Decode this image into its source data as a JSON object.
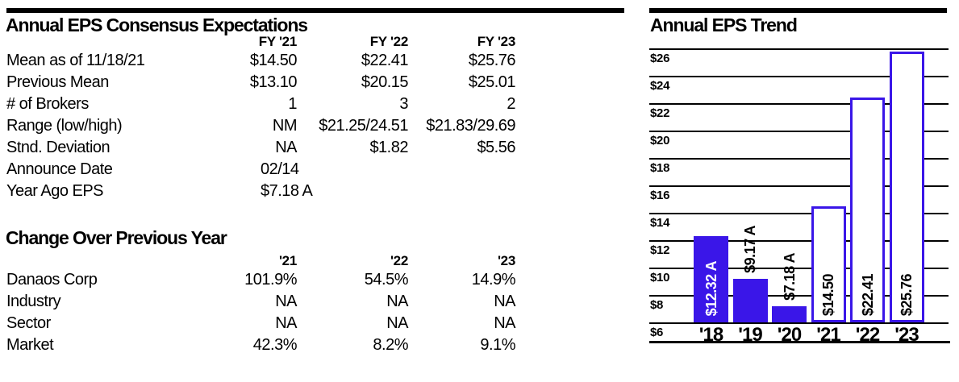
{
  "page": {
    "left_section": {
      "title": "Annual EPS Consensus Expectations",
      "consensus_table": {
        "columns": [
          "FY '21",
          "FY '22",
          "FY '23"
        ],
        "rows": [
          {
            "label": "Mean as of 11/18/21",
            "values": [
              "$14.50",
              "$22.41",
              "$25.76"
            ],
            "value_align": "right"
          },
          {
            "label": "Previous Mean",
            "values": [
              "$13.10",
              "$20.15",
              "$25.01"
            ],
            "value_align": "right"
          },
          {
            "label": "# of Brokers",
            "values": [
              "1",
              "3",
              "2"
            ],
            "value_align": "right"
          },
          {
            "label": "Range (low/high)",
            "values": [
              "NM",
              "$21.25/24.51",
              "$21.83/29.69"
            ],
            "value_align": "right"
          },
          {
            "label": "Stnd. Deviation",
            "values": [
              "NA",
              "$1.82",
              "$5.56"
            ],
            "value_align": "right"
          },
          {
            "label": "Announce Date",
            "values": [
              "02/14",
              "",
              ""
            ],
            "value_align": "left"
          },
          {
            "label": "Year Ago EPS",
            "values": [
              "$7.18 A",
              "",
              ""
            ],
            "value_align": "left"
          }
        ]
      },
      "change_section_title": "Change Over Previous Year",
      "change_table": {
        "columns": [
          "'21",
          "'22",
          "'23"
        ],
        "rows": [
          {
            "label": "Danaos Corp",
            "values": [
              "101.9%",
              "54.5%",
              "14.9%"
            ],
            "value_align": "right"
          },
          {
            "label": "Industry",
            "values": [
              "NA",
              "NA",
              "NA"
            ],
            "value_align": "right"
          },
          {
            "label": "Sector",
            "values": [
              "NA",
              "NA",
              "NA"
            ],
            "value_align": "right"
          },
          {
            "label": "Market",
            "values": [
              "42.3%",
              "8.2%",
              "9.1%"
            ],
            "value_align": "right"
          }
        ]
      }
    },
    "right_section": {
      "title": "Annual EPS Trend"
    }
  },
  "colors": {
    "accent_blue": "#3a16e8",
    "grid_black": "#000000",
    "estimate_bar_fill": "#ffffff",
    "actual_label_text": "#ffffff",
    "estimate_label_text": "#000000"
  },
  "chart_data": {
    "type": "bar",
    "title": "Annual EPS Trend",
    "categories": [
      "'18",
      "'19",
      "'20",
      "'21",
      "'22",
      "'23"
    ],
    "values": [
      12.32,
      9.17,
      7.18,
      14.5,
      22.41,
      25.76
    ],
    "bar_labels": [
      "$12.32 A",
      "$9.17 A",
      "$7.18 A",
      "$14.50",
      "$22.41",
      "$25.76"
    ],
    "bar_styles": [
      "actual",
      "actual",
      "actual",
      "estimate",
      "estimate",
      "estimate"
    ],
    "label_placement": [
      "inside",
      "above",
      "above",
      "inside",
      "inside",
      "inside"
    ],
    "label_colors": [
      "#ffffff",
      "#000000",
      "#000000",
      "#000000",
      "#000000",
      "#000000"
    ],
    "yticks": [
      26,
      24,
      22,
      20,
      18,
      16,
      14,
      12,
      10,
      8,
      6
    ],
    "ytick_labels": [
      "$26",
      "$24",
      "$22",
      "$20",
      "$18",
      "$16",
      "$14",
      "$12",
      "$10",
      "$8",
      "$6"
    ],
    "ylim": [
      6,
      26
    ],
    "xlabel": "",
    "ylabel": "",
    "grid": true,
    "legend_position": "none"
  }
}
